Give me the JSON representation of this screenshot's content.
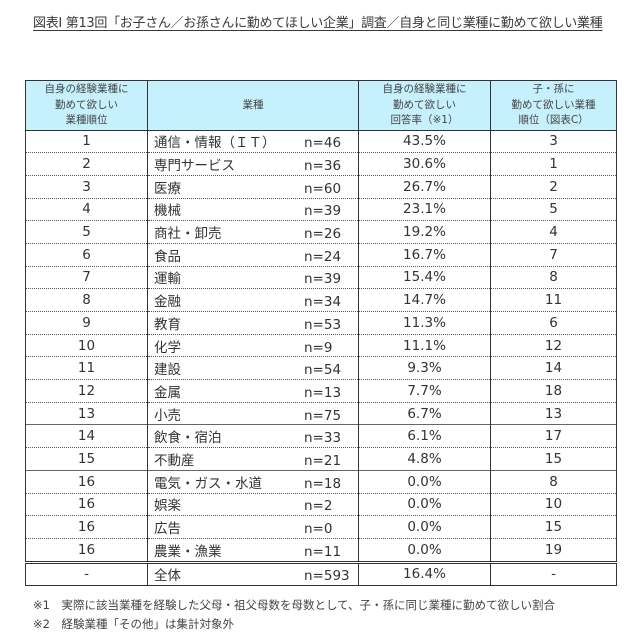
{
  "title": "図表Ⅰ 第13回「お子さん／お孫さんに勤めてほしい企業」調査／自身と同じ業種に勤めて欲しい業種",
  "table": {
    "headers": [
      "自身の経験業種に\n勤めて欲しい\n業種順位",
      "業種",
      "自身の経験業種に\n勤めて欲しい\n回答率（※1）",
      "子・孫に\n勤めて欲しい業種\n順位（図表C）"
    ],
    "header_bg": "#c6f0fb",
    "rows": [
      {
        "rank": "1",
        "industry": "通信・情報（ＩＴ）",
        "n": "n=46",
        "rate": "43.5%",
        "child_rank": "3"
      },
      {
        "rank": "2",
        "industry": "専門サービス",
        "n": "n=36",
        "rate": "30.6%",
        "child_rank": "1"
      },
      {
        "rank": "3",
        "industry": "医療",
        "n": "n=60",
        "rate": "26.7%",
        "child_rank": "2"
      },
      {
        "rank": "4",
        "industry": "機械",
        "n": "n=39",
        "rate": "23.1%",
        "child_rank": "5"
      },
      {
        "rank": "5",
        "industry": "商社・卸売",
        "n": "n=26",
        "rate": "19.2%",
        "child_rank": "4"
      },
      {
        "rank": "6",
        "industry": "食品",
        "n": "n=24",
        "rate": "16.7%",
        "child_rank": "7"
      },
      {
        "rank": "7",
        "industry": "運輸",
        "n": "n=39",
        "rate": "15.4%",
        "child_rank": "8"
      },
      {
        "rank": "8",
        "industry": "金融",
        "n": "n=34",
        "rate": "14.7%",
        "child_rank": "11"
      },
      {
        "rank": "9",
        "industry": "教育",
        "n": "n=53",
        "rate": "11.3%",
        "child_rank": "6"
      },
      {
        "rank": "10",
        "industry": "化学",
        "n": "n=9",
        "rate": "11.1%",
        "child_rank": "12"
      },
      {
        "rank": "11",
        "industry": "建設",
        "n": "n=54",
        "rate": "9.3%",
        "child_rank": "14"
      },
      {
        "rank": "12",
        "industry": "金属",
        "n": "n=13",
        "rate": "7.7%",
        "child_rank": "18"
      },
      {
        "rank": "13",
        "industry": "小売",
        "n": "n=75",
        "rate": "6.7%",
        "child_rank": "13"
      },
      {
        "rank": "14",
        "industry": "飲食・宿泊",
        "n": "n=33",
        "rate": "6.1%",
        "child_rank": "17"
      },
      {
        "rank": "15",
        "industry": "不動産",
        "n": "n=21",
        "rate": "4.8%",
        "child_rank": "15"
      },
      {
        "rank": "16",
        "industry": "電気・ガス・水道",
        "n": "n=18",
        "rate": "0.0%",
        "child_rank": "8"
      },
      {
        "rank": "16",
        "industry": "娯楽",
        "n": "n=2",
        "rate": "0.0%",
        "child_rank": "10"
      },
      {
        "rank": "16",
        "industry": "広告",
        "n": "n=0",
        "rate": "0.0%",
        "child_rank": "15"
      },
      {
        "rank": "16",
        "industry": "農業・漁業",
        "n": "n=11",
        "rate": "0.0%",
        "child_rank": "19"
      }
    ],
    "total": {
      "rank": "-",
      "industry": "全体",
      "n": "n=593",
      "rate": "16.4%",
      "child_rank": "-"
    }
  },
  "notes": [
    "※1　実際に該当業種を経験した父母・祖父母数を母数として、子・孫に同じ業種に勤めて欲しい割合",
    "※2　経験業種「その他」は集計対象外"
  ]
}
